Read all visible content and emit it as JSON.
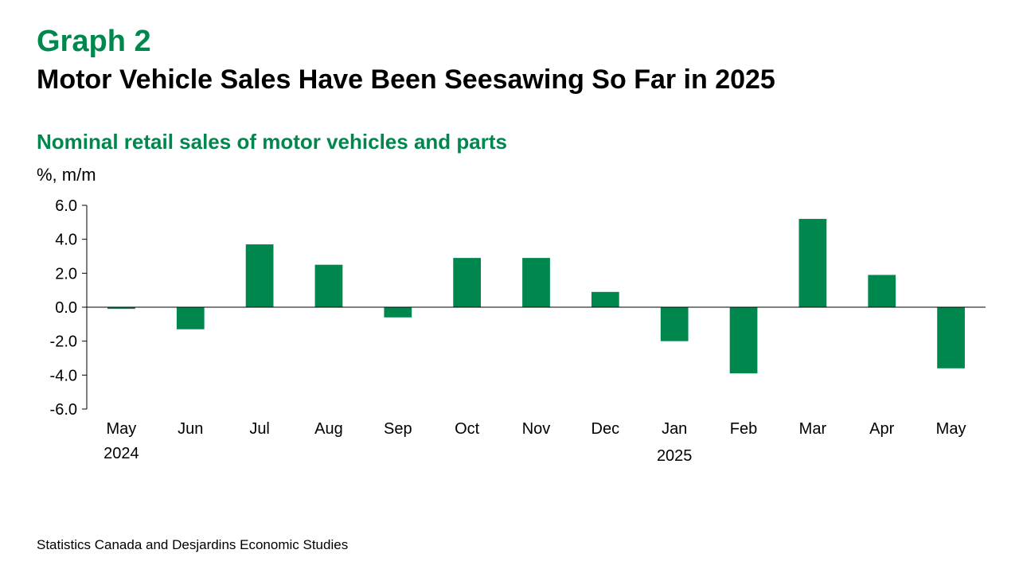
{
  "header": {
    "graph_label": "Graph 2",
    "title": "Motor Vehicle Sales Have Been Seesawing So Far in 2025"
  },
  "footer": {
    "source": "Statistics Canada and Desjardins Economic Studies"
  },
  "colors": {
    "accent": "#00874e",
    "bar": "#00874e",
    "axis": "#000000"
  },
  "chart_data": {
    "type": "bar",
    "title": "Nominal retail sales of motor vehicles and parts",
    "ylabel": "%, m/m",
    "xlabel": "",
    "categories": [
      "May",
      "Jun",
      "Jul",
      "Aug",
      "Sep",
      "Oct",
      "Nov",
      "Dec",
      "Jan",
      "Feb",
      "Mar",
      "Apr",
      "May"
    ],
    "year_labels": [
      {
        "category_index": 0,
        "label": "2024"
      },
      {
        "category_index": 8,
        "label": "2025"
      }
    ],
    "values": [
      -0.1,
      -1.3,
      3.7,
      2.5,
      -0.6,
      2.9,
      2.9,
      0.9,
      -2.0,
      -3.9,
      5.2,
      1.9,
      -3.6
    ],
    "ylim": [
      -6.0,
      6.0
    ],
    "yticks": [
      6.0,
      4.0,
      2.0,
      0.0,
      -2.0,
      -4.0,
      -6.0
    ],
    "grid": false,
    "legend": "none"
  }
}
